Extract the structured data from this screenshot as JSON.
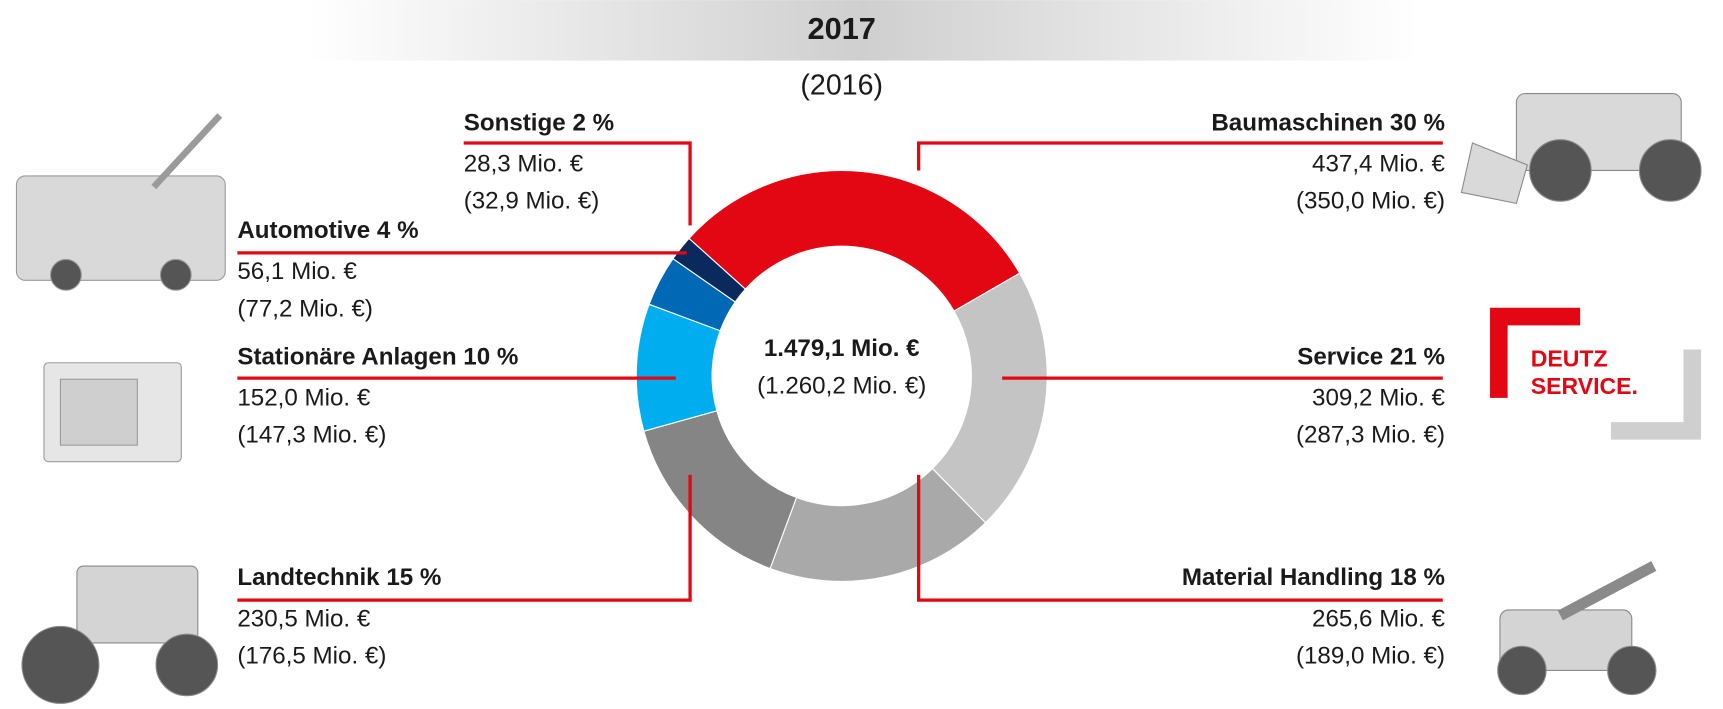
{
  "chart_data": {
    "type": "donut",
    "title": "2017",
    "subtitle": "(2016)",
    "center_label": "1.479,1 Mio. €",
    "center_sublabel": "(1.260,2 Mio. €)",
    "categories": [
      "Baumaschinen",
      "Service",
      "Material Handling",
      "Landtechnik",
      "Stationäre Anlagen",
      "Automotive",
      "Sonstige"
    ],
    "values": [
      30,
      21,
      18,
      15,
      10,
      4,
      2
    ],
    "value_labels": [
      "30 %",
      "21 %",
      "18 %",
      "15 %",
      "10 %",
      "4 %",
      "2 %"
    ],
    "colors": [
      "#e30613",
      "#c4c4c4",
      "#a9a9a9",
      "#858585",
      "#00aeef",
      "#0068b4",
      "#0a2a5e"
    ],
    "revenue_labels": [
      "437,4 Mio. €",
      "309,2 Mio. €",
      "265,6 Mio. €",
      "230,5 Mio. €",
      "152,0 Mio. €",
      "56,1 Mio. €",
      "28,3 Mio. €"
    ],
    "prior_revenue_labels": [
      "(350,0 Mio. €)",
      "(287,3 Mio. €)",
      "(189,0 Mio. €)",
      "(176,5 Mio. €)",
      "(147,3 Mio. €)",
      "(77,2 Mio. €)",
      "(32,9 Mio. €)"
    ],
    "logo_text": [
      "DEUTZ",
      "SERVICE."
    ]
  }
}
